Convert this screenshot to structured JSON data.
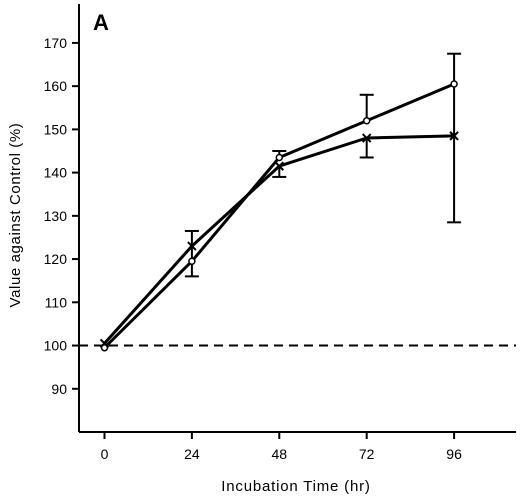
{
  "chart_data": {
    "type": "line",
    "panel_label": "A",
    "xlabel": "Incubation Time (hr)",
    "ylabel": "Value against Control (%)",
    "x": [
      0,
      24,
      48,
      72,
      96
    ],
    "xticks": [
      0,
      24,
      48,
      72,
      96
    ],
    "yticks": [
      90,
      100,
      110,
      120,
      130,
      140,
      150,
      160,
      170
    ],
    "xlim": [
      -7,
      113
    ],
    "ylim": [
      80,
      179
    ],
    "reference_line": 100,
    "grid": false,
    "series": [
      {
        "marker": "circle",
        "values": [
          99.5,
          119.5,
          143.5,
          152,
          160.5
        ],
        "error_upper": [
          null,
          null,
          145,
          158,
          null
        ],
        "error_lower": [
          null,
          null,
          null,
          null,
          null
        ]
      },
      {
        "marker": "cross",
        "values": [
          100.5,
          123,
          141.5,
          148,
          148.5
        ],
        "error_upper": [
          null,
          126.5,
          null,
          null,
          167.5
        ],
        "error_lower": [
          null,
          116,
          139,
          143.5,
          128.5
        ]
      }
    ]
  }
}
